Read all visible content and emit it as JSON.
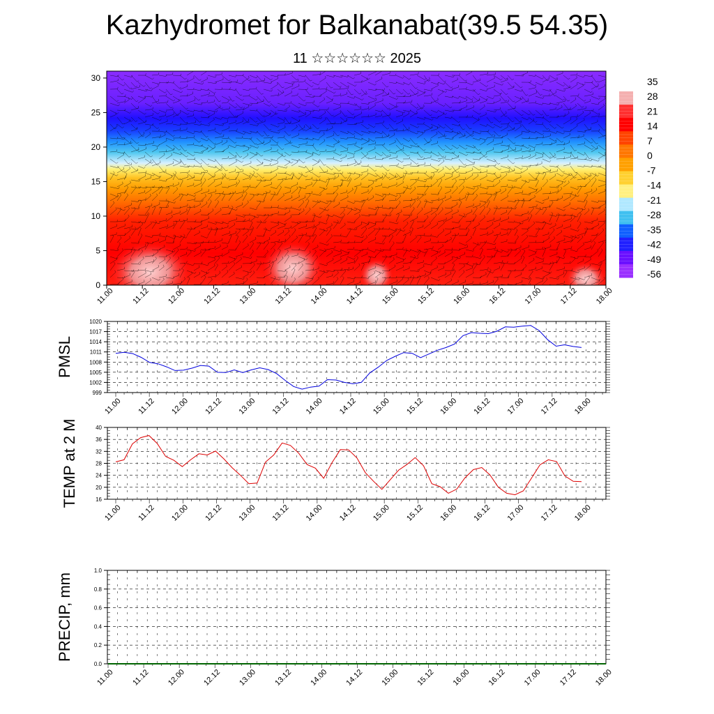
{
  "header": {
    "title": "Kazhydromet for Balkanabat(39.5 54.35)",
    "subtitle": "11 ☆☆☆☆☆☆ 2025"
  },
  "colors": {
    "pmsl_line": "#0000dd",
    "temp_line": "#dd0000",
    "precip_line": "#006400"
  },
  "chart_data": [
    {
      "type": "heatmap",
      "name": "vertical cross-section",
      "x_labels": [
        "11.00",
        "11.12",
        "12.00",
        "12.12",
        "13.00",
        "13.12",
        "14.00",
        "14.12",
        "15.00",
        "15.12",
        "16.00",
        "16.12",
        "17.00",
        "17.12",
        "18.00"
      ],
      "y_ticks": [
        0,
        5,
        10,
        15,
        20,
        25,
        30
      ],
      "ylim": [
        0,
        31
      ],
      "colorbar_labels": [
        "35",
        "28",
        "21",
        "14",
        "7",
        "0",
        "-7",
        "-14",
        "-21",
        "-28",
        "-35",
        "-42",
        "-49",
        "-56"
      ],
      "colorbar_colors": [
        "#ffffff",
        "#f4b0b0",
        "#ff3030",
        "#ff0000",
        "#ff4400",
        "#ff7700",
        "#ffa000",
        "#ffd030",
        "#fff080",
        "#b0e8ff",
        "#40c0f0",
        "#1060ff",
        "#2020ff",
        "#6a10ff",
        "#9a30ff"
      ],
      "vertical_profile": [
        {
          "height": 0,
          "temperature": 35
        },
        {
          "height": 4,
          "temperature": 28
        },
        {
          "height": 9,
          "temperature": 14
        },
        {
          "height": 13,
          "temperature": 0
        },
        {
          "height": 16,
          "temperature": -14
        },
        {
          "height": 19,
          "temperature": -28
        },
        {
          "height": 22,
          "temperature": -49
        },
        {
          "height": 26,
          "temperature": -56
        },
        {
          "height": 31,
          "temperature": -56
        }
      ]
    },
    {
      "type": "line",
      "ylabel": "PMSL",
      "x_labels": [
        "11.00",
        "11.12",
        "12.00",
        "12.12",
        "13.00",
        "13.12",
        "14.00",
        "14.12",
        "15.00",
        "15.12",
        "16.00",
        "16.12",
        "17.00",
        "17.12",
        "18.00"
      ],
      "y_ticks": [
        999,
        1002,
        1005,
        1008,
        1011,
        1014,
        1017,
        1020
      ],
      "ylim": [
        999,
        1020
      ],
      "series": [
        {
          "values": [
            1010.6,
            1010.9,
            1010.5,
            1009.4,
            1007.9,
            1007.5,
            1006.6,
            1005.5,
            1005.6,
            1006.2,
            1007.0,
            1006.8,
            1005.0,
            1004.9,
            1005.7,
            1004.9,
            1005.7,
            1006.3,
            1005.8,
            1004.6,
            1002.6,
            1000.8,
            1000.0,
            1000.6,
            1000.9,
            1002.8,
            1002.7,
            1002.0,
            1001.6,
            1002.0,
            1004.8,
            1006.5,
            1008.5,
            1009.7,
            1010.8,
            1010.6,
            1009.3,
            1010.4,
            1011.5,
            1012.3,
            1013.3,
            1015.8,
            1016.7,
            1016.5,
            1016.4,
            1017.1,
            1018.4,
            1018.3,
            1018.6,
            1018.8,
            1017.3,
            1014.6,
            1012.7,
            1013.1,
            1012.6,
            1012.3
          ]
        }
      ]
    },
    {
      "type": "line",
      "ylabel": "TEMP at 2 M",
      "x_labels": [
        "11.00",
        "11.12",
        "12.00",
        "12.12",
        "13.00",
        "13.12",
        "14.00",
        "14.12",
        "15.00",
        "15.12",
        "16.00",
        "16.12",
        "17.00",
        "17.12",
        "18.00"
      ],
      "y_ticks": [
        16,
        20,
        24,
        28,
        32,
        36,
        40
      ],
      "ylim": [
        16,
        40
      ],
      "series": [
        {
          "values": [
            28.5,
            29.2,
            34.5,
            36.6,
            37.3,
            34.6,
            30.3,
            29.0,
            26.9,
            29.2,
            31.2,
            30.8,
            32.1,
            29.5,
            26.5,
            24.0,
            21.2,
            21.4,
            28.4,
            30.8,
            34.8,
            34.0,
            31.4,
            27.6,
            26.4,
            23.0,
            28.2,
            32.6,
            32.5,
            29.8,
            24.9,
            22.0,
            19.3,
            22.5,
            25.7,
            27.6,
            29.9,
            27.2,
            21.2,
            20.2,
            18.0,
            19.4,
            23.2,
            25.9,
            26.6,
            24.1,
            20.0,
            18.0,
            17.5,
            18.8,
            23.1,
            27.5,
            29.2,
            28.6,
            23.8,
            22.0,
            21.9
          ]
        }
      ]
    },
    {
      "type": "line",
      "ylabel": "PRECIP, mm",
      "x_labels": [
        "11.00",
        "11.12",
        "12.00",
        "12.12",
        "13.00",
        "13.12",
        "14.00",
        "14.12",
        "15.00",
        "15.12",
        "16.00",
        "16.12",
        "17.00",
        "17.12",
        "18.00"
      ],
      "y_ticks": [
        "0.0",
        "0.2",
        "0.4",
        "0.6",
        "0.8",
        "1.0"
      ],
      "ylim": [
        0,
        1
      ],
      "series": [
        {
          "values": [
            0,
            0,
            0,
            0,
            0,
            0,
            0,
            0,
            0,
            0,
            0,
            0,
            0,
            0,
            0
          ]
        }
      ]
    }
  ]
}
